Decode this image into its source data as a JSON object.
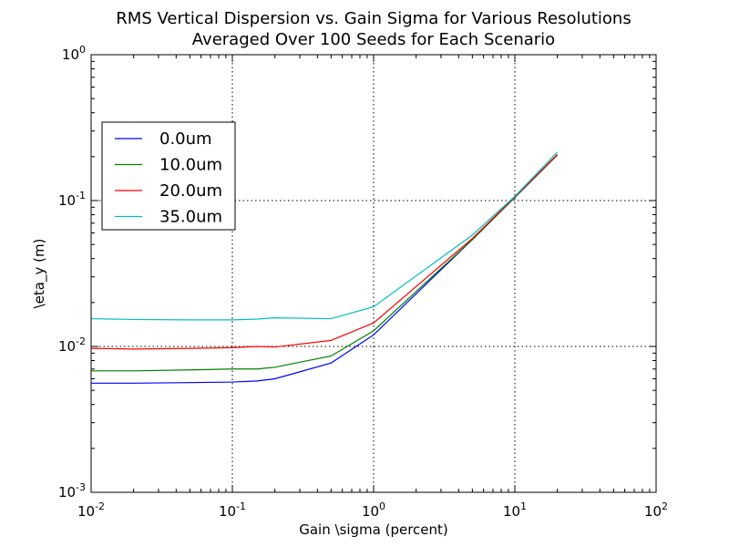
{
  "chart_data": {
    "type": "line",
    "title": "RMS Vertical Dispersion vs. Gain Sigma for Various Resolutions",
    "subtitle": "Averaged Over 100 Seeds for Each Scenario",
    "xlabel": "Gain \\sigma (percent)",
    "ylabel": "\\eta_y (m)",
    "xscale": "log",
    "yscale": "log",
    "xlim": [
      0.01,
      100
    ],
    "ylim": [
      0.001,
      1
    ],
    "x_ticks": [
      {
        "base": "10",
        "exp": "-2"
      },
      {
        "base": "10",
        "exp": "-1"
      },
      {
        "base": "10",
        "exp": "0"
      },
      {
        "base": "10",
        "exp": "1"
      },
      {
        "base": "10",
        "exp": "2"
      }
    ],
    "y_ticks": [
      {
        "base": "10",
        "exp": "-3"
      },
      {
        "base": "10",
        "exp": "-2"
      },
      {
        "base": "10",
        "exp": "-1"
      },
      {
        "base": "10",
        "exp": "0"
      }
    ],
    "grid": true,
    "legend_position": "upper-left",
    "series": [
      {
        "name": "0.0um",
        "color": "#0000ff",
        "x": [
          0.01,
          0.02,
          0.05,
          0.1,
          0.15,
          0.2,
          0.5,
          1,
          5,
          10,
          20
        ],
        "y": [
          0.0056,
          0.0056,
          0.00565,
          0.0057,
          0.0058,
          0.006,
          0.0077,
          0.012,
          0.054,
          0.105,
          0.205
        ]
      },
      {
        "name": "10.0um",
        "color": "#008000",
        "x": [
          0.01,
          0.02,
          0.05,
          0.1,
          0.15,
          0.2,
          0.5,
          1,
          5,
          10,
          20
        ],
        "y": [
          0.0068,
          0.0068,
          0.0069,
          0.007,
          0.007,
          0.0072,
          0.0086,
          0.0128,
          0.054,
          0.105,
          0.205
        ]
      },
      {
        "name": "20.0um",
        "color": "#ff0000",
        "x": [
          0.01,
          0.02,
          0.05,
          0.1,
          0.15,
          0.2,
          0.5,
          1,
          5,
          10,
          20
        ],
        "y": [
          0.0097,
          0.0096,
          0.0097,
          0.0098,
          0.01,
          0.0099,
          0.011,
          0.0145,
          0.055,
          0.106,
          0.207
        ]
      },
      {
        "name": "35.0um",
        "color": "#00bfbf",
        "x": [
          0.01,
          0.02,
          0.05,
          0.1,
          0.15,
          0.2,
          0.5,
          1,
          5,
          10,
          20
        ],
        "y": [
          0.0155,
          0.0153,
          0.0152,
          0.0152,
          0.0154,
          0.0157,
          0.0155,
          0.0187,
          0.058,
          0.107,
          0.215
        ]
      }
    ]
  }
}
